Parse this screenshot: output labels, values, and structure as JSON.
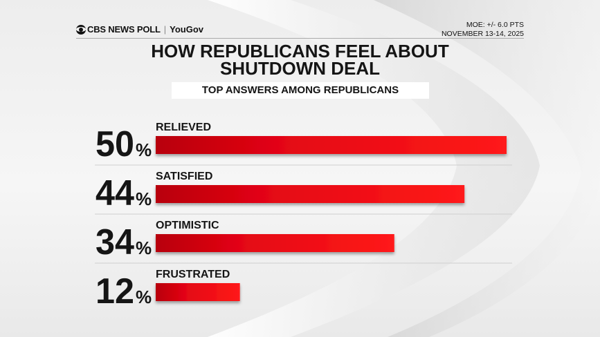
{
  "header": {
    "brand_cbs": "CBS NEWS POLL",
    "brand_yougov": "YouGov",
    "moe": "MOE: +/- 6.0 PTS",
    "dates": "NOVEMBER 13-14, 2025"
  },
  "title_line1": "HOW REPUBLICANS FEEL ABOUT",
  "title_line2": "SHUTDOWN DEAL",
  "subtitle": "TOP ANSWERS AMONG REPUBLICANS",
  "chart_data": {
    "type": "bar",
    "orientation": "horizontal",
    "title": "HOW REPUBLICANS FEEL ABOUT SHUTDOWN DEAL",
    "subtitle": "TOP ANSWERS AMONG REPUBLICANS",
    "categories": [
      "RELIEVED",
      "SATISFIED",
      "OPTIMISTIC",
      "FRUSTRATED"
    ],
    "values": [
      50,
      44,
      34,
      12
    ],
    "value_labels": [
      "50",
      "44",
      "34",
      "12"
    ],
    "unit": "%",
    "xlim": [
      0,
      50
    ],
    "grid": false,
    "legend": "none",
    "bar_color": "#e30613"
  }
}
